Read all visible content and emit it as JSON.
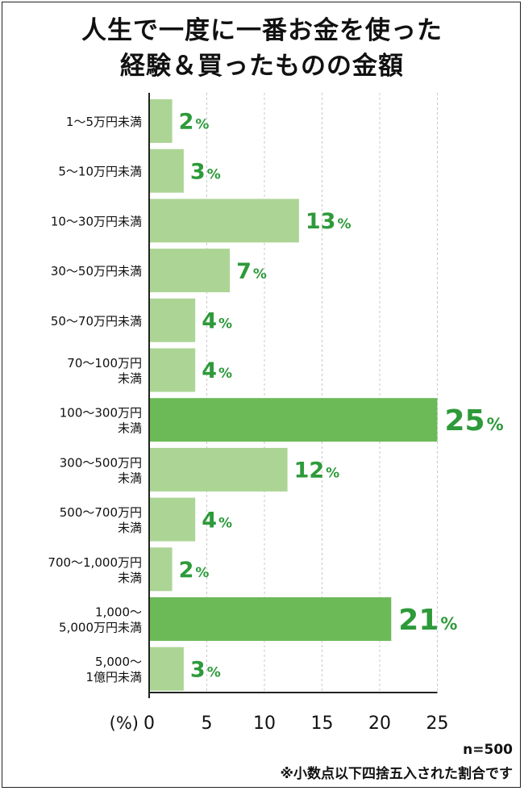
{
  "title": {
    "line1": "人生で一度に一番お金を使った",
    "line2": "経験＆買ったものの金額"
  },
  "footer": {
    "n": "n=500",
    "note": "※小数点以下四捨五入された割合です"
  },
  "colors": {
    "bar_normal": "#acd595",
    "bar_highlight": "#6bba57",
    "value_label": "#2e9a3a",
    "grid": "#c8c8c8",
    "axis": "#222222"
  },
  "chart_data": {
    "type": "bar",
    "orientation": "horizontal",
    "title": "人生で一度に一番お金を使った経験＆買ったものの金額",
    "xlabel": "(%)",
    "ylabel": "",
    "xlim": [
      0,
      25
    ],
    "xticks": [
      0,
      5,
      10,
      15,
      20,
      25
    ],
    "grid": true,
    "value_suffix": "%",
    "categories": [
      [
        "1〜5万円未満"
      ],
      [
        "5〜10万円未満"
      ],
      [
        "10〜30万円未満"
      ],
      [
        "30〜50万円未満"
      ],
      [
        "50〜70万円未満"
      ],
      [
        "70〜100万円",
        "未満"
      ],
      [
        "100〜300万円",
        "未満"
      ],
      [
        "300〜500万円",
        "未満"
      ],
      [
        "500〜700万円",
        "未満"
      ],
      [
        "700〜1,000万円",
        "未満"
      ],
      [
        "1,000〜",
        "5,000万円未満"
      ],
      [
        "5,000〜",
        "1億円未満"
      ]
    ],
    "values": [
      2,
      3,
      13,
      7,
      4,
      4,
      25,
      12,
      4,
      2,
      21,
      3
    ],
    "highlighted": [
      false,
      false,
      false,
      false,
      false,
      false,
      true,
      false,
      false,
      false,
      true,
      false
    ]
  }
}
